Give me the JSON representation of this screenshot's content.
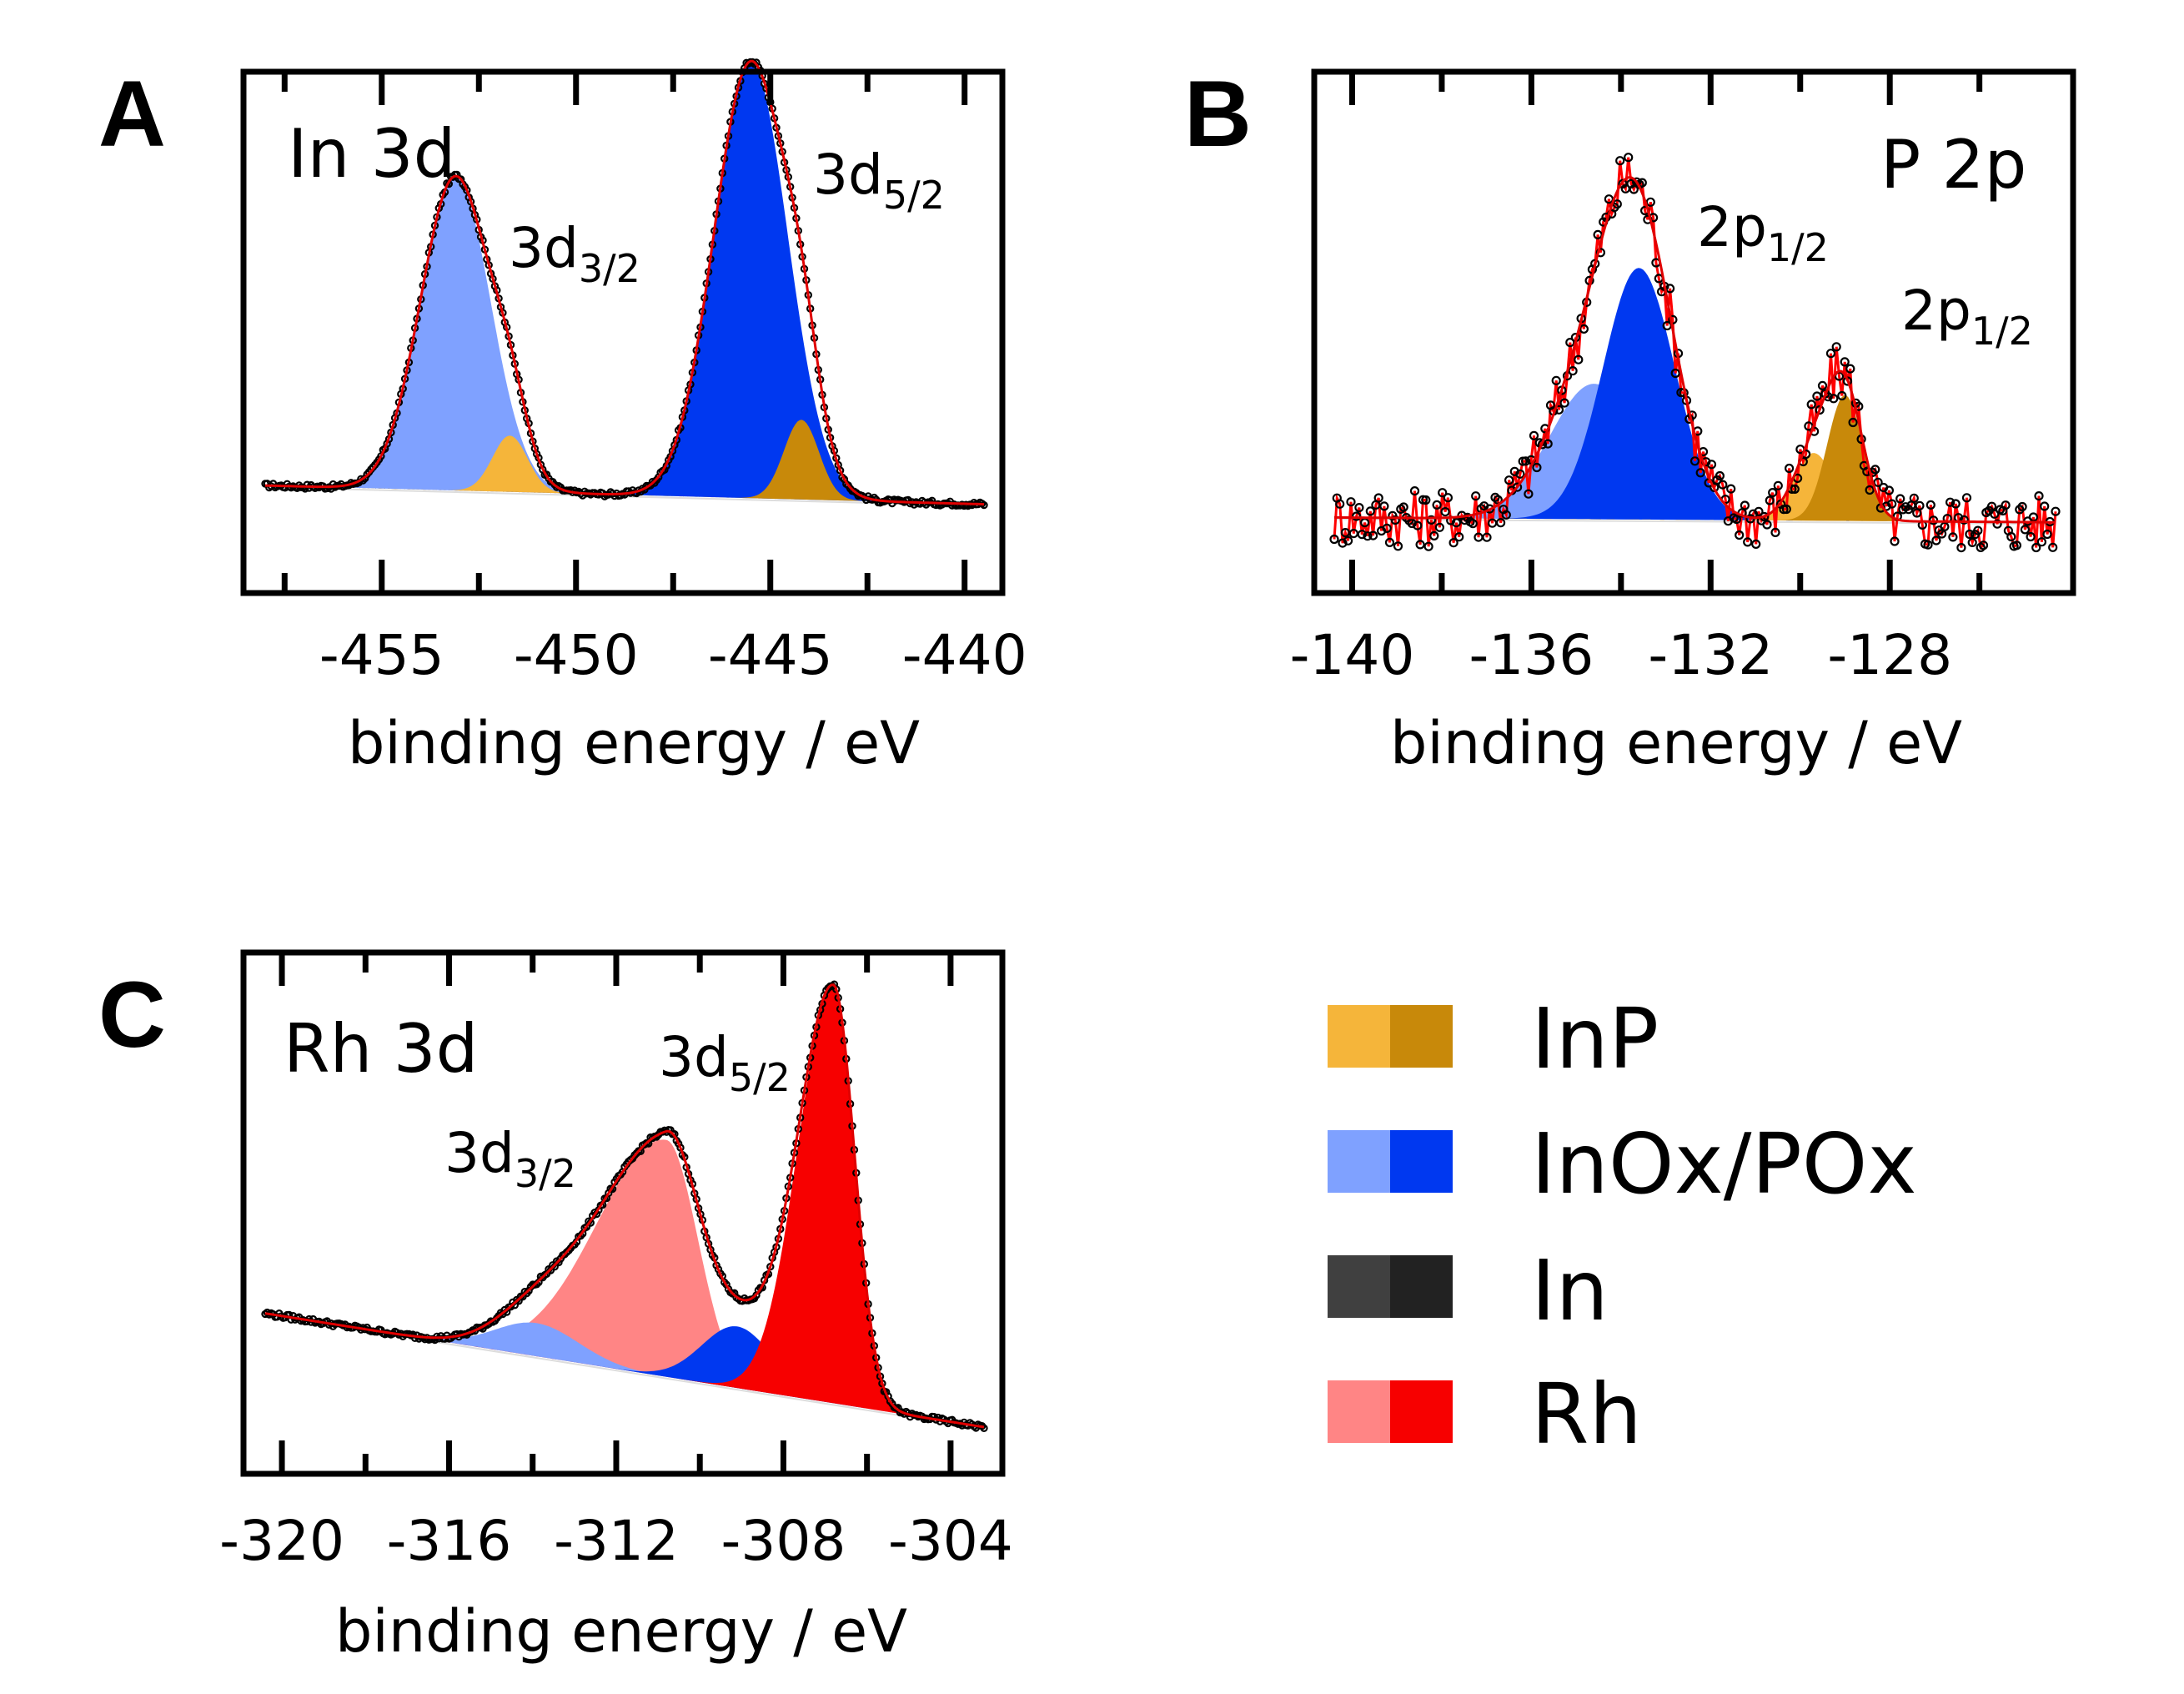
{
  "chart_data": [
    {
      "id": "A",
      "type": "area",
      "panel_letter": "A",
      "element": "In 3d",
      "xlabel": "binding energy / eV",
      "xlim": [
        -458,
        -439.5
      ],
      "ylim": [
        0,
        1
      ],
      "xticks": [
        -455,
        -450,
        -445,
        -440
      ],
      "tick_labels": [
        "-455",
        "-450",
        "-445",
        "-440"
      ],
      "peaks": [
        {
          "label": "3d",
          "sub": "3/2",
          "at": [
            -451.9,
            0.72
          ]
        },
        {
          "label": "3d",
          "sub": "5/2",
          "at": [
            -444.2,
            0.88
          ]
        }
      ],
      "components": [
        {
          "name": "InOx/POx",
          "color": "#7FA1FF",
          "center": -453.1,
          "amp": 0.67,
          "sigma": 0.9
        },
        {
          "name": "InP",
          "color": "#F5B53A",
          "center": -451.7,
          "amp": 0.12,
          "sigma": 0.45
        },
        {
          "name": "InOx/POx",
          "color": "#0038F0",
          "center": -445.5,
          "amp": 0.93,
          "sigma": 0.95
        },
        {
          "name": "InP",
          "color": "#C8890A",
          "center": -444.2,
          "amp": 0.17,
          "sigma": 0.45
        }
      ],
      "background": [
        [
          -458,
          0.16
        ],
        [
          -439.5,
          0.12
        ]
      ]
    },
    {
      "id": "B",
      "type": "area",
      "panel_letter": "B",
      "element": "P 2p",
      "xlabel": "binding energy / eV",
      "xlim": [
        -140.4,
        -124.3
      ],
      "ylim": [
        0,
        1
      ],
      "xticks": [
        -140,
        -136,
        -132,
        -128
      ],
      "tick_labels": [
        "-140",
        "-136",
        "-132",
        "-128"
      ],
      "peaks": [
        {
          "label": "2p",
          "sub": "1/2",
          "at": [
            -132.3,
            0.69
          ]
        },
        {
          "label": "2p",
          "sub": "1/2",
          "at": [
            -128.0,
            0.52
          ]
        }
      ],
      "components": [
        {
          "name": "InOx/POx",
          "color": "#7FA1FF",
          "center": -134.6,
          "amp": 0.28,
          "sigma": 1.0
        },
        {
          "name": "InOx/POx",
          "color": "#0038F0",
          "center": -133.6,
          "amp": 0.52,
          "sigma": 0.8
        },
        {
          "name": "InP",
          "color": "#F5B53A",
          "center": -129.7,
          "amp": 0.14,
          "sigma": 0.45
        },
        {
          "name": "InP",
          "color": "#C8890A",
          "center": -129.0,
          "amp": 0.26,
          "sigma": 0.4
        }
      ],
      "background": [
        [
          -140.4,
          0.12
        ],
        [
          -124.3,
          0.11
        ]
      ],
      "noise_amplitude": 0.06
    },
    {
      "id": "C",
      "type": "area",
      "panel_letter": "C",
      "element": "Rh 3d",
      "xlabel": "binding energy / eV",
      "xlim": [
        -320.4,
        -303.2
      ],
      "ylim": [
        0,
        1
      ],
      "xticks": [
        -320,
        -316,
        -312,
        -308,
        -304
      ],
      "tick_labels": [
        "-320",
        "-316",
        "-312",
        "-308",
        "-304"
      ],
      "peaks": [
        {
          "label": "3d",
          "sub": "3/2",
          "at": [
            -314.6,
            0.57
          ]
        },
        {
          "label": "3d",
          "sub": "5/2",
          "at": [
            -311.5,
            0.78
          ]
        }
      ],
      "components": [
        {
          "name": "Rh",
          "color": "#FF8585",
          "center": -310.8,
          "amp": 0.5,
          "sigma": 0.75,
          "tail": 2.2
        },
        {
          "name": "InOx/POx",
          "color": "#7FA1FF",
          "center": -313.9,
          "amp": 0.07,
          "sigma": 1.0
        },
        {
          "name": "InOx/POx",
          "color": "#0038F0",
          "center": -309.1,
          "amp": 0.13,
          "sigma": 0.85
        },
        {
          "name": "Rh",
          "color": "#F70000",
          "center": -306.8,
          "amp": 0.88,
          "sigma": 0.5,
          "tail": 1.7
        }
      ],
      "background": [
        [
          -320.4,
          0.27
        ],
        [
          -303.2,
          0.03
        ]
      ]
    }
  ],
  "legend": [
    {
      "label": "InP",
      "light": "#F5B53A",
      "dark": "#C8890A"
    },
    {
      "label": "InOx/POx",
      "light": "#7FA1FF",
      "dark": "#0038F0"
    },
    {
      "label": "In",
      "light": "#404040",
      "dark": "#222222"
    },
    {
      "label": "Rh",
      "light": "#FF8585",
      "dark": "#F70000"
    }
  ]
}
